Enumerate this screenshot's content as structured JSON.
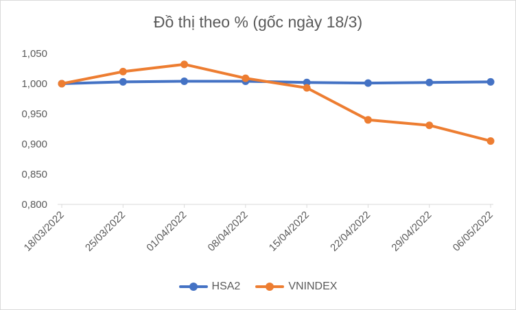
{
  "chart_data": {
    "type": "line",
    "title": "Đồ thị theo % (gốc ngày 18/3)",
    "categories": [
      "18/03/2022",
      "25/03/2022",
      "01/04/2022",
      "08/04/2022",
      "15/04/2022",
      "22/04/2022",
      "29/04/2022",
      "06/05/2022"
    ],
    "series": [
      {
        "name": "HSA2",
        "color": "#4472c4",
        "values": [
          1.0,
          1.003,
          1.004,
          1.004,
          1.002,
          1.001,
          1.002,
          1.003
        ]
      },
      {
        "name": "VNINDEX",
        "color": "#ed7d31",
        "values": [
          1.0,
          1.02,
          1.032,
          1.009,
          0.993,
          0.94,
          0.931,
          0.905
        ]
      }
    ],
    "ylim": [
      0.8,
      1.05
    ],
    "yticks": [
      "0,800",
      "0,850",
      "0,900",
      "0,950",
      "1,000",
      "1,050"
    ],
    "ytick_values": [
      0.8,
      0.85,
      0.9,
      0.95,
      1.0,
      1.05
    ],
    "legend_position": "bottom",
    "grid": false
  }
}
